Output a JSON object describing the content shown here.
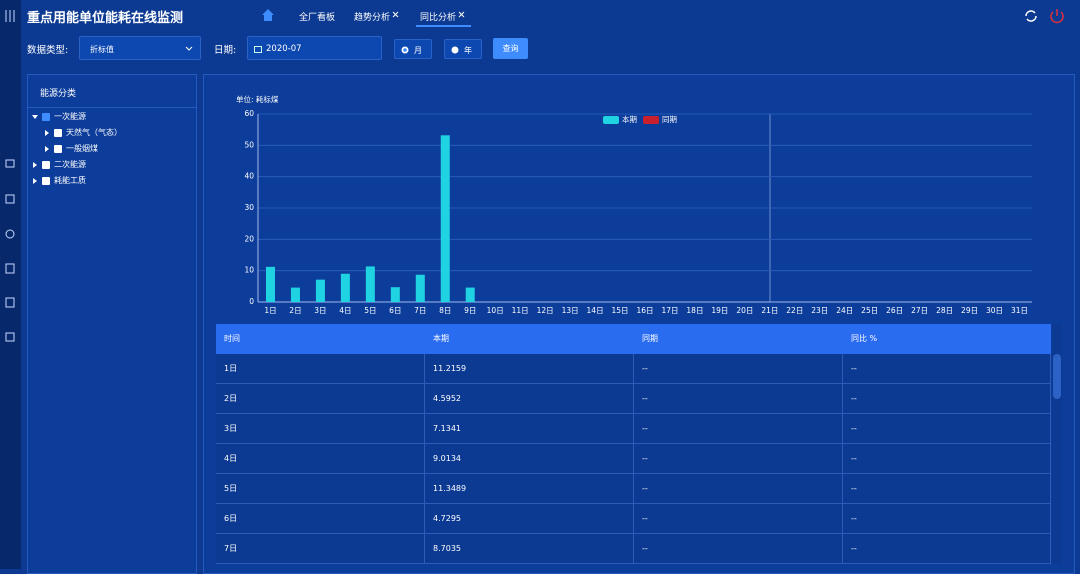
{
  "header": {
    "title": "重点用能单位能耗在线监测",
    "tabs": [
      "全厂看板",
      "趋势分析",
      "同比分析"
    ]
  },
  "filters": {
    "type_label": "数据类型:",
    "type_value": "折标值",
    "date_label": "日期:",
    "date_value": "2020-07",
    "radio": [
      "月",
      "年"
    ],
    "query": "查询"
  },
  "tree": {
    "title": "能源分类",
    "nodes": [
      {
        "label": "一次能源",
        "children": [
          "天然气（气态）",
          "一般烟煤"
        ]
      },
      {
        "label": "二次能源"
      },
      {
        "label": "耗能工质"
      }
    ]
  },
  "chart_data": {
    "type": "bar",
    "unit_label": "单位: 耗标煤",
    "categories": [
      "1日",
      "2日",
      "3日",
      "4日",
      "5日",
      "6日",
      "7日",
      "8日",
      "9日",
      "10日",
      "11日",
      "12日",
      "13日",
      "14日",
      "15日",
      "16日",
      "17日",
      "18日",
      "19日",
      "20日",
      "21日",
      "22日",
      "23日",
      "24日",
      "25日",
      "26日",
      "27日",
      "28日",
      "29日",
      "30日",
      "31日"
    ],
    "series": [
      {
        "name": "本期",
        "color": "#1fd3e3",
        "values": [
          11.2159,
          4.5952,
          7.1341,
          9.0134,
          11.3489,
          4.7295,
          8.7035,
          53.2,
          4.6,
          null,
          null,
          null,
          null,
          null,
          null,
          null,
          null,
          null,
          null,
          null,
          null,
          null,
          null,
          null,
          null,
          null,
          null,
          null,
          null,
          null,
          null
        ]
      },
      {
        "name": "同期",
        "color": "#c8202c",
        "values": [
          null,
          null,
          null,
          null,
          null,
          null,
          null,
          null,
          null,
          null,
          null,
          null,
          null,
          null,
          null,
          null,
          null,
          null,
          null,
          null,
          null,
          null,
          null,
          null,
          null,
          null,
          null,
          null,
          null,
          null,
          null
        ]
      }
    ],
    "ylim": [
      0,
      60
    ],
    "yticks": [
      0,
      10,
      20,
      30,
      40,
      50,
      60
    ],
    "grid": true
  },
  "table": {
    "columns": [
      "时间",
      "本期",
      "同期",
      "同比 %"
    ],
    "rows": [
      [
        "1日",
        "11.2159",
        "--",
        "--"
      ],
      [
        "2日",
        "4.5952",
        "--",
        "--"
      ],
      [
        "3日",
        "7.1341",
        "--",
        "--"
      ],
      [
        "4日",
        "9.0134",
        "--",
        "--"
      ],
      [
        "5日",
        "11.3489",
        "--",
        "--"
      ],
      [
        "6日",
        "4.7295",
        "--",
        "--"
      ],
      [
        "7日",
        "8.7035",
        "--",
        "--"
      ]
    ]
  }
}
